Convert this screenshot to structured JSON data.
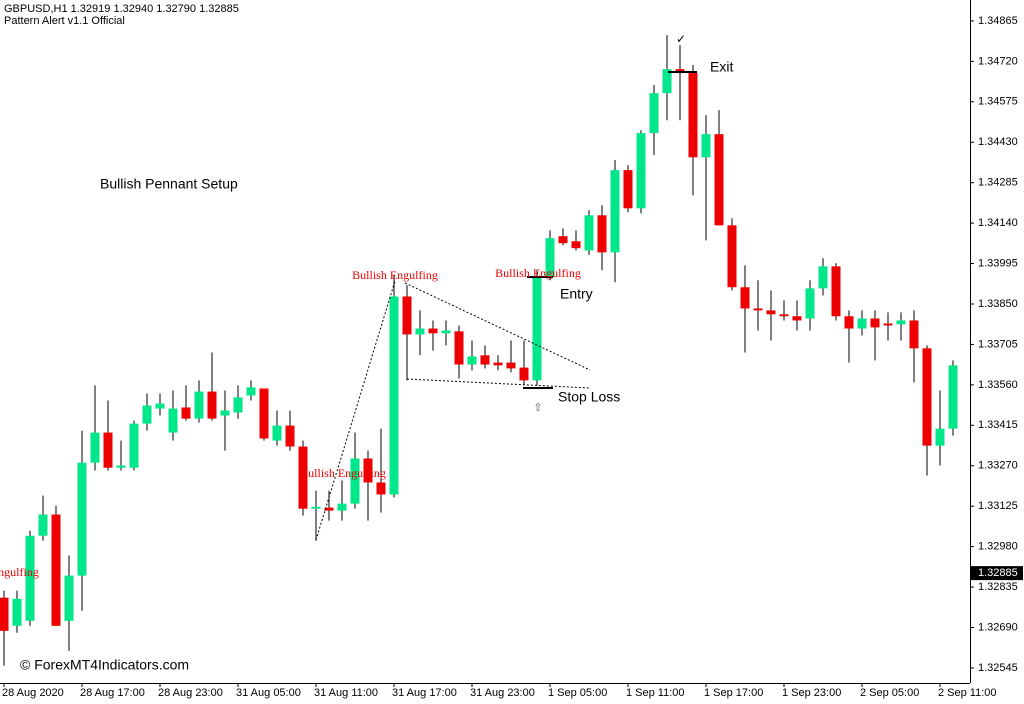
{
  "header": "GBPUSD,H1  1.32919 1.32940 1.32790 1.32885",
  "indicator": "Pattern Alert v1.1 Official",
  "chart_data": {
    "type": "candlestick",
    "title": "Bullish Pennant Setup",
    "annotations": {
      "entry": "Entry",
      "exit": "Exit",
      "stop_loss": "Stop Loss",
      "pattern": "Bullish Engulfing",
      "watermark": "© ForexMT4Indicators.com"
    },
    "bull_color": "#00e68a",
    "bear_color": "#ee0000",
    "current_price": 1.32885,
    "categories": [
      "28 Aug 2020",
      null,
      null,
      null,
      null,
      null,
      "28 Aug 17:00",
      null,
      null,
      null,
      null,
      null,
      "28 Aug 23:00",
      null,
      null,
      null,
      null,
      null,
      "31 Aug 05:00",
      null,
      null,
      null,
      null,
      null,
      "31 Aug 11:00",
      null,
      null,
      null,
      null,
      null,
      "31 Aug 17:00",
      null,
      null,
      null,
      null,
      null,
      "31 Aug 23:00",
      null,
      null,
      null,
      null,
      null,
      "1 Sep 05:00",
      null,
      null,
      null,
      null,
      null,
      "1 Sep 11:00",
      null,
      null,
      null,
      null,
      null,
      "1 Sep 17:00",
      null,
      null,
      null,
      null,
      null,
      "1 Sep 23:00",
      null,
      null,
      null,
      null,
      null,
      "2 Sep 05:00",
      null,
      null,
      null,
      null,
      null,
      "2 Sep 11:00",
      null
    ],
    "open": [
      1.32797,
      1.32696,
      1.32714,
      1.33019,
      1.33095,
      1.32714,
      1.32876,
      1.33281,
      1.33389,
      1.33263,
      1.33263,
      1.33421,
      1.33475,
      1.33389,
      1.33479,
      1.33439,
      1.33536,
      1.3345,
      1.33461,
      1.33522,
      1.33547,
      1.3336,
      1.33414,
      1.33339,
      1.33116,
      1.3312,
      1.33109,
      1.33134,
      1.33296,
      1.3321,
      1.33167,
      1.33877,
      1.33741,
      1.33762,
      1.33745,
      1.33752,
      1.33633,
      1.33666,
      1.3364,
      1.3364,
      1.33622,
      1.33576,
      1.33946,
      1.34093,
      1.34075,
      1.34042,
      1.34168,
      1.34035,
      1.3433,
      1.34193,
      1.34463,
      1.34606,
      1.34692,
      1.34678,
      1.34376,
      1.34459,
      1.34132,
      1.3391,
      1.33834,
      1.33827,
      1.33813,
      1.33806,
      1.33798,
      1.33906,
      1.33985,
      1.33806,
      1.33762,
      1.33798,
      1.3378,
      1.33777,
      1.33791,
      1.33691,
      1.33342,
      1.33403
    ],
    "high": [
      1.32822,
      1.32822,
      1.33037,
      1.33163,
      1.33127,
      1.32948,
      1.33396,
      1.33558,
      1.33504,
      1.3336,
      1.33432,
      1.33529,
      1.33529,
      1.3354,
      1.33558,
      1.33576,
      1.33676,
      1.3354,
      1.33558,
      1.33576,
      1.33547,
      1.33468,
      1.33468,
      1.3336,
      1.33181,
      1.33181,
      1.33217,
      1.33389,
      1.33324,
      1.33403,
      1.33953,
      1.33917,
      1.33827,
      1.33791,
      1.33791,
      1.33773,
      1.33719,
      1.33701,
      1.33666,
      1.33719,
      1.33719,
      1.33971,
      1.34114,
      1.34121,
      1.34114,
      1.34186,
      1.34204,
      1.34366,
      1.34348,
      1.34473,
      1.34635,
      1.34814,
      1.34778,
      1.34707,
      1.34527,
      1.34545,
      1.34157,
      1.33989,
      1.33935,
      1.33899,
      1.33863,
      1.33863,
      1.33935,
      1.34014,
      1.33996,
      1.33827,
      1.33827,
      1.33827,
      1.3382,
      1.3382,
      1.33827,
      1.33701,
      1.3354,
      1.33648
    ],
    "low": [
      1.32553,
      1.32671,
      1.32696,
      1.33001,
      1.32696,
      1.32606,
      1.3275,
      1.33253,
      1.33253,
      1.33253,
      1.33253,
      1.33396,
      1.3345,
      1.3336,
      1.33432,
      1.33425,
      1.33432,
      1.33324,
      1.33439,
      1.33504,
      1.3336,
      1.33342,
      1.33324,
      1.33091,
      1.33001,
      1.33073,
      1.33073,
      1.33116,
      1.33073,
      1.33102,
      1.33156,
      1.33576,
      1.33666,
      1.33683,
      1.33701,
      1.33583,
      1.33612,
      1.33619,
      1.33612,
      1.33605,
      1.33558,
      1.33558,
      1.33935,
      1.3406,
      1.34042,
      1.34025,
      1.33971,
      1.33928,
      1.34179,
      1.34175,
      1.34384,
      1.34509,
      1.34509,
      1.3424,
      1.34078,
      1.34132,
      1.33899,
      1.33676,
      1.33755,
      1.33719,
      1.33791,
      1.33755,
      1.33755,
      1.33881,
      1.33791,
      1.3364,
      1.33737,
      1.33648,
      1.33719,
      1.33719,
      1.33569,
      1.33235,
      1.33271,
      1.33378
    ],
    "close": [
      1.32678,
      1.32793,
      1.33019,
      1.33095,
      1.32696,
      1.32876,
      1.33281,
      1.33389,
      1.33263,
      1.33271,
      1.33421,
      1.33486,
      1.33493,
      1.33475,
      1.33439,
      1.33536,
      1.33439,
      1.33468,
      1.33515,
      1.33551,
      1.33368,
      1.33414,
      1.33339,
      1.33116,
      1.33123,
      1.33109,
      1.33134,
      1.33296,
      1.3321,
      1.33167,
      1.33877,
      1.33741,
      1.33762,
      1.33745,
      1.33755,
      1.33633,
      1.33662,
      1.33633,
      1.3363,
      1.33619,
      1.33576,
      1.33946,
      1.34086,
      1.34068,
      1.3405,
      1.34168,
      1.34035,
      1.3433,
      1.34193,
      1.34463,
      1.34606,
      1.34692,
      1.34678,
      1.34376,
      1.34459,
      1.34132,
      1.3391,
      1.33834,
      1.33827,
      1.33813,
      1.33806,
      1.33791,
      1.33906,
      1.33985,
      1.33806,
      1.33762,
      1.33798,
      1.33766,
      1.33773,
      1.33791,
      1.33691,
      1.33342,
      1.33403,
      1.3363
    ],
    "ylim": [
      1.32491,
      1.3494
    ],
    "yticks": [
      1.34865,
      {
        "value": 1.3472,
        "label": "1.34720"
      },
      1.34575,
      {
        "value": 1.3443,
        "label": "1.34430"
      },
      1.34285,
      {
        "value": 1.3414,
        "label": "1.34140"
      },
      1.33995,
      {
        "value": 1.3385,
        "label": "1.33850"
      },
      1.33705,
      {
        "value": 1.3356,
        "label": "1.33560"
      },
      1.33415,
      {
        "value": 1.3327,
        "label": "1.33270"
      },
      1.33125,
      {
        "value": 1.3298,
        "label": "1.32980"
      },
      1.32835,
      {
        "value": 1.3269,
        "label": "1.32690"
      },
      1.32545
    ],
    "grid": false
  }
}
